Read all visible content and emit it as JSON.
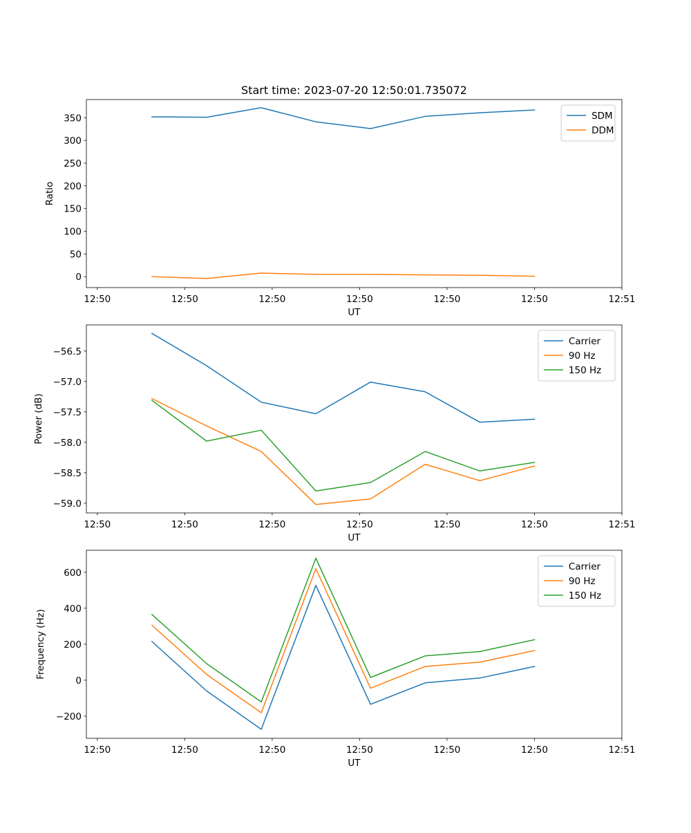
{
  "colors": {
    "blue": "#1f77b4",
    "orange": "#ff7f0e",
    "green": "#2ca02c",
    "axis": "#000000",
    "legend_border": "#cccccc"
  },
  "chart_data": [
    {
      "type": "line",
      "title": "Start time: 2023-07-20 12:50:01.735072",
      "xlabel": "UT",
      "ylabel": "Ratio",
      "x": [
        0.5,
        1.0,
        1.5,
        2.0,
        2.5,
        3.0,
        3.5,
        4.0
      ],
      "xlim": [
        -0.1,
        4.8
      ],
      "xticks": [
        0,
        0.8,
        1.6,
        2.4,
        3.2,
        4.0,
        4.8
      ],
      "xtick_labels": [
        "12:50",
        "12:50",
        "12:50",
        "12:50",
        "12:50",
        "12:50",
        "12:51"
      ],
      "ylim": [
        -24,
        390
      ],
      "yticks": [
        0,
        50,
        100,
        150,
        200,
        250,
        300,
        350
      ],
      "ytick_labels": [
        "0",
        "50",
        "100",
        "150",
        "200",
        "250",
        "300",
        "350"
      ],
      "legend_position": "top-right",
      "series": [
        {
          "name": "SDM",
          "color": "#1f77b4",
          "values": [
            352,
            351,
            372,
            341,
            326,
            353,
            361,
            367
          ]
        },
        {
          "name": "DDM",
          "color": "#ff7f0e",
          "values": [
            0,
            -4,
            8,
            5,
            5,
            4,
            3,
            1
          ]
        }
      ]
    },
    {
      "type": "line",
      "title": "",
      "xlabel": "UT",
      "ylabel": "Power (dB)",
      "x": [
        0.5,
        1.0,
        1.5,
        2.0,
        2.5,
        3.0,
        3.5,
        4.0
      ],
      "xlim": [
        -0.1,
        4.8
      ],
      "xticks": [
        0,
        0.8,
        1.6,
        2.4,
        3.2,
        4.0,
        4.8
      ],
      "xtick_labels": [
        "12:50",
        "12:50",
        "12:50",
        "12:50",
        "12:50",
        "12:50",
        "12:51"
      ],
      "ylim": [
        -59.16,
        -56.07
      ],
      "yticks": [
        -59.0,
        -58.5,
        -58.0,
        -57.5,
        -57.0,
        -56.5
      ],
      "ytick_labels": [
        "−59.0",
        "−58.5",
        "−58.0",
        "−57.5",
        "−57.0",
        "−56.5"
      ],
      "legend_position": "top-right",
      "series": [
        {
          "name": "Carrier",
          "color": "#1f77b4",
          "values": [
            -56.21,
            -56.74,
            -57.34,
            -57.53,
            -57.01,
            -57.17,
            -57.67,
            -57.62
          ]
        },
        {
          "name": "90 Hz",
          "color": "#ff7f0e",
          "values": [
            -57.28,
            -57.73,
            -58.15,
            -59.02,
            -58.93,
            -58.36,
            -58.63,
            -58.39
          ]
        },
        {
          "name": "150 Hz",
          "color": "#2ca02c",
          "values": [
            -57.31,
            -57.98,
            -57.8,
            -58.8,
            -58.66,
            -58.15,
            -58.47,
            -58.33
          ]
        }
      ]
    },
    {
      "type": "line",
      "title": "",
      "xlabel": "UT",
      "ylabel": "Frequency (Hz)",
      "x": [
        0.5,
        1.0,
        1.5,
        2.0,
        2.5,
        3.0,
        3.5,
        4.0
      ],
      "xlim": [
        -0.1,
        4.8
      ],
      "xticks": [
        0,
        0.8,
        1.6,
        2.4,
        3.2,
        4.0,
        4.8
      ],
      "xtick_labels": [
        "12:50",
        "12:50",
        "12:50",
        "12:50",
        "12:50",
        "12:50",
        "12:51"
      ],
      "ylim": [
        -323,
        722
      ],
      "yticks": [
        -200,
        0,
        200,
        400,
        600
      ],
      "ytick_labels": [
        "−200",
        "0",
        "200",
        "400",
        "600"
      ],
      "legend_position": "top-right",
      "series": [
        {
          "name": "Carrier",
          "color": "#1f77b4",
          "values": [
            215,
            -60,
            -273,
            527,
            -134,
            -15,
            12,
            76
          ]
        },
        {
          "name": "90 Hz",
          "color": "#ff7f0e",
          "values": [
            305,
            32,
            -181,
            620,
            -45,
            76,
            100,
            165
          ]
        },
        {
          "name": "150 Hz",
          "color": "#2ca02c",
          "values": [
            365,
            92,
            -121,
            678,
            15,
            135,
            159,
            225
          ]
        }
      ]
    }
  ]
}
